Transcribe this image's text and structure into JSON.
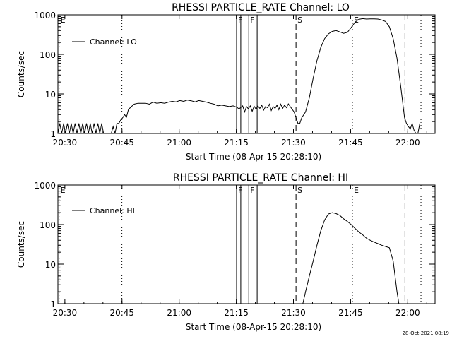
{
  "footer_timestamp": "28-Oct-2021 08:19",
  "chart_data": [
    {
      "type": "line",
      "title": "RHESSI PARTICLE_RATE Channel: LO",
      "ylabel": "Counts/sec",
      "xlabel": "Start Time (08-Apr-15 20:28:10)",
      "x_unit": "minutes after 20:28:10",
      "xlim": [
        0,
        99
      ],
      "ylim": [
        1,
        1000
      ],
      "yscale": "log",
      "xticks": [
        {
          "x": 1.83,
          "label": "20:30"
        },
        {
          "x": 16.83,
          "label": "20:45"
        },
        {
          "x": 31.83,
          "label": "21:00"
        },
        {
          "x": 46.83,
          "label": "21:15"
        },
        {
          "x": 61.83,
          "label": "21:30"
        },
        {
          "x": 76.83,
          "label": "21:45"
        },
        {
          "x": 91.83,
          "label": "22:00"
        }
      ],
      "yticks": [
        {
          "y": 1,
          "label": "1"
        },
        {
          "y": 10,
          "label": "10"
        },
        {
          "y": 100,
          "label": "100"
        },
        {
          "y": 1000,
          "label": "1000"
        }
      ],
      "legend": {
        "label": "Channel: LO",
        "position": "top-left"
      },
      "markers": [
        {
          "x": 0.3,
          "label": "E",
          "style": "dotted"
        },
        {
          "x": 16.8,
          "label": "",
          "style": "dotted"
        },
        {
          "x": 46.9,
          "label": "F",
          "style": "solid"
        },
        {
          "x": 48.0,
          "label": "",
          "style": "solid"
        },
        {
          "x": 50.1,
          "label": "F",
          "style": "solid"
        },
        {
          "x": 52.3,
          "label": "",
          "style": "solid"
        },
        {
          "x": 62.5,
          "label": "S",
          "style": "dashed"
        },
        {
          "x": 77.3,
          "label": "E",
          "style": "dotted"
        },
        {
          "x": 91.1,
          "label": "",
          "style": "dashed"
        },
        {
          "x": 95.3,
          "label": "",
          "style": "dotted"
        }
      ],
      "series": [
        {
          "x": [
            0,
            0.5,
            1,
            1.5,
            2,
            2.5,
            3,
            3.5,
            4,
            4.5,
            5,
            5.5,
            6,
            6.5,
            7,
            7.5,
            8,
            8.5,
            9,
            9.5,
            10,
            10.5,
            11,
            11.5,
            12,
            13,
            14,
            14.5,
            15,
            15.5,
            16,
            16.5,
            17,
            17.5,
            18,
            18.5,
            19,
            20,
            21,
            22,
            23,
            24,
            25,
            26,
            27,
            28,
            29,
            30,
            31,
            32,
            33,
            34,
            35,
            36,
            37,
            38,
            39,
            40,
            41,
            42,
            43,
            44,
            45,
            46,
            47,
            47.5,
            48,
            48.5,
            49,
            49.5,
            50,
            50.5,
            51,
            51.5,
            52,
            52.5,
            53,
            53.5,
            54,
            54.5,
            55,
            55.5,
            56,
            56.5,
            57,
            57.5,
            58,
            58.5,
            59,
            59.5,
            60,
            60.5,
            61,
            62,
            63,
            63.5,
            64,
            65,
            66,
            67,
            68,
            69,
            70,
            71,
            72,
            73,
            74,
            75,
            76,
            77,
            78,
            79,
            80,
            81,
            82,
            83,
            84,
            85,
            86,
            87,
            88,
            89,
            90,
            90.5,
            91,
            91.5,
            92,
            92.5,
            93,
            93.5,
            94,
            94.5,
            95
          ],
          "y": [
            1,
            1.8,
            1,
            1.8,
            1,
            1.8,
            1,
            1.8,
            1,
            1.8,
            1,
            1.8,
            1,
            1.8,
            1,
            1.8,
            1,
            1.8,
            1,
            1.8,
            1,
            1.8,
            1,
            1.8,
            1,
            1,
            1,
            1.5,
            1,
            1.8,
            1.8,
            2.2,
            2.5,
            3,
            2.6,
            4,
            4.5,
            5.5,
            5.8,
            5.8,
            5.8,
            5.5,
            6.2,
            5.8,
            6,
            5.8,
            6.2,
            6.5,
            6.3,
            6.8,
            6.5,
            7,
            6.7,
            6.3,
            6.8,
            6.5,
            6.2,
            5.8,
            5.5,
            5,
            5.2,
            5,
            4.8,
            5,
            4.6,
            4.2,
            4.5,
            5,
            3.5,
            4.8,
            4.2,
            5,
            3.6,
            4.9,
            4.1,
            5,
            4.3,
            5.2,
            3.9,
            4.8,
            4.5,
            5.5,
            3.8,
            4.8,
            4.3,
            5.2,
            4,
            5.5,
            4.3,
            5.2,
            4.5,
            5.6,
            4.8,
            3.5,
            1.8,
            1.8,
            2.5,
            3.5,
            8,
            25,
            70,
            150,
            250,
            330,
            380,
            400,
            370,
            340,
            360,
            480,
            650,
            770,
            800,
            780,
            790,
            790,
            780,
            740,
            680,
            500,
            250,
            80,
            15,
            6,
            2.5,
            1.8,
            1.5,
            1.3,
            1.8,
            1.2,
            1,
            1,
            1.8
          ]
        }
      ]
    },
    {
      "type": "line",
      "title": "RHESSI PARTICLE_RATE Channel: HI",
      "ylabel": "Counts/sec",
      "xlabel": "Start Time (08-Apr-15 20:28:10)",
      "x_unit": "minutes after 20:28:10",
      "xlim": [
        0,
        99
      ],
      "ylim": [
        1,
        1000
      ],
      "yscale": "log",
      "xticks": [
        {
          "x": 1.83,
          "label": "20:30"
        },
        {
          "x": 16.83,
          "label": "20:45"
        },
        {
          "x": 31.83,
          "label": "21:00"
        },
        {
          "x": 46.83,
          "label": "21:15"
        },
        {
          "x": 61.83,
          "label": "21:30"
        },
        {
          "x": 76.83,
          "label": "21:45"
        },
        {
          "x": 91.83,
          "label": "22:00"
        }
      ],
      "yticks": [
        {
          "y": 1,
          "label": "1"
        },
        {
          "y": 10,
          "label": "10"
        },
        {
          "y": 100,
          "label": "100"
        },
        {
          "y": 1000,
          "label": "1000"
        }
      ],
      "legend": {
        "label": "Channel: HI",
        "position": "top-left"
      },
      "markers": [
        {
          "x": 0.3,
          "label": "E",
          "style": "dotted"
        },
        {
          "x": 16.8,
          "label": "",
          "style": "dotted"
        },
        {
          "x": 46.9,
          "label": "F",
          "style": "solid"
        },
        {
          "x": 48.0,
          "label": "",
          "style": "solid"
        },
        {
          "x": 50.1,
          "label": "F",
          "style": "solid"
        },
        {
          "x": 52.3,
          "label": "",
          "style": "solid"
        },
        {
          "x": 62.5,
          "label": "S",
          "style": "dashed"
        },
        {
          "x": 77.3,
          "label": "E",
          "style": "dotted"
        },
        {
          "x": 91.1,
          "label": "",
          "style": "dashed"
        },
        {
          "x": 95.3,
          "label": "",
          "style": "dotted"
        }
      ],
      "series": [
        {
          "x": [
            64.3,
            65,
            66,
            67,
            68,
            69,
            70,
            71,
            72,
            73,
            74,
            75,
            76,
            77,
            78,
            79,
            80,
            81,
            82,
            83,
            84,
            85,
            86,
            87,
            88,
            89,
            89.5
          ],
          "y": [
            1,
            2,
            5,
            12,
            30,
            70,
            130,
            185,
            200,
            190,
            170,
            140,
            120,
            100,
            80,
            65,
            55,
            45,
            40,
            36,
            33,
            30,
            28,
            26,
            12,
            2,
            1
          ]
        }
      ]
    }
  ]
}
